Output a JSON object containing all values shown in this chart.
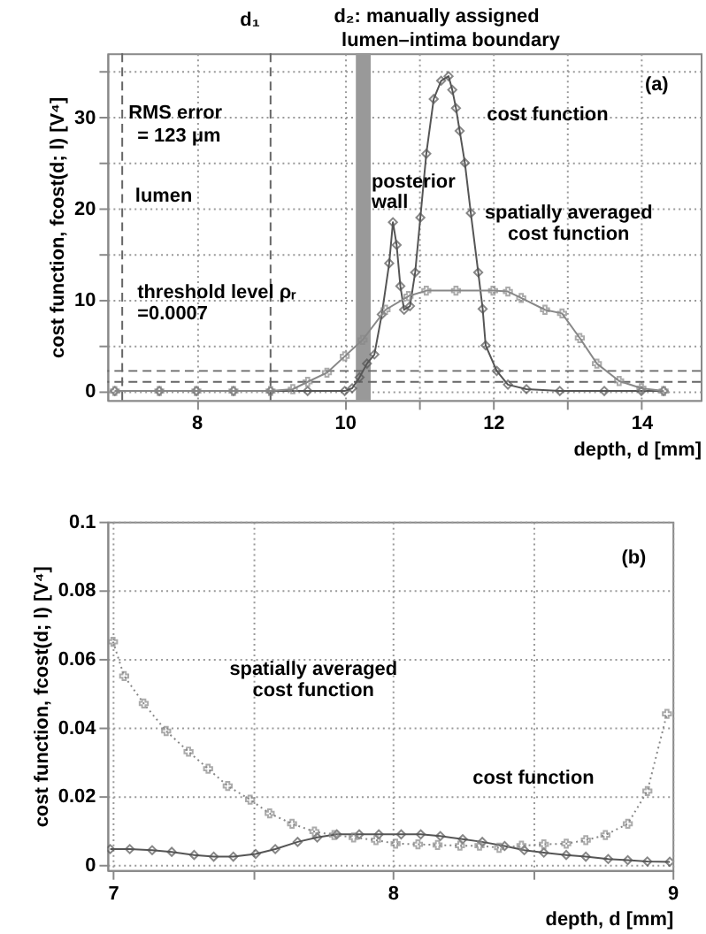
{
  "chart_data": [
    {
      "type": "line",
      "xlabel": "depth, d [mm]",
      "ylabel": "cost function, fcost(d; l) [V⁴]",
      "xlim": [
        6.8,
        14.8
      ],
      "ylim": [
        -1,
        37
      ],
      "xticks": [
        8,
        10,
        {
          "value": 11,
          "label": null
        },
        12,
        {
          "value": 13,
          "label": null
        },
        14
      ],
      "yticks": [
        0,
        {
          "value": 5,
          "label": null
        },
        10,
        {
          "value": 15,
          "label": null
        },
        20,
        {
          "value": 25,
          "label": null
        },
        30,
        {
          "value": 35,
          "label": null
        }
      ],
      "grid": true,
      "legend": false,
      "series": [
        {
          "color": "#555555",
          "marker": "diamond",
          "line_style": "solid",
          "x": [
            6.9,
            7.5,
            8,
            8.5,
            9,
            9.5,
            10,
            10.1,
            10.2,
            10.3,
            10.4,
            10.5,
            10.6,
            10.65,
            10.7,
            10.75,
            10.8,
            10.88,
            10.95,
            11.02,
            11.1,
            11.2,
            11.3,
            11.4,
            11.45,
            11.5,
            11.55,
            11.62,
            11.7,
            11.8,
            11.86,
            11.9,
            12.05,
            12.2,
            12.45,
            12.9,
            13.5,
            14,
            14.3
          ],
          "values": [
            0,
            0,
            0,
            0,
            0,
            0,
            0,
            0.3,
            1.5,
            3,
            4,
            8.4,
            14,
            18.5,
            16,
            11.5,
            8.9,
            9.3,
            13,
            19,
            26,
            32,
            34,
            34.5,
            33,
            31,
            28.5,
            25,
            19.5,
            13,
            9,
            5,
            2.2,
            0.7,
            0.2,
            0,
            0,
            0,
            0
          ]
        },
        {
          "color": "#888888",
          "marker": "cross",
          "line_style": "solid",
          "x": [
            6.9,
            7.5,
            8,
            8.5,
            9,
            9.3,
            9.5,
            9.76,
            10.0,
            10.24,
            10.55,
            10.86,
            11.1,
            11.5,
            12.0,
            12.2,
            12.38,
            12.7,
            12.93,
            13.17,
            13.4,
            13.7,
            14.0,
            14.3
          ],
          "values": [
            0,
            0,
            0,
            0,
            0,
            0.2,
            1,
            2,
            3.8,
            5.6,
            8.9,
            10.4,
            11,
            11,
            11,
            10.9,
            10.2,
            8.9,
            8.5,
            5.8,
            3,
            1.1,
            0.3,
            0
          ]
        }
      ],
      "bands": [
        {
          "axis": "x",
          "from": 10.15,
          "to": 10.35,
          "color": "#999999"
        }
      ],
      "ref_lines": [
        {
          "axis": "x",
          "value": 7,
          "line_style": "dashed",
          "color": "#666666"
        },
        {
          "axis": "x",
          "value": 9,
          "line_style": "dashed",
          "color": "#666666"
        },
        {
          "axis": "y",
          "value": 2.2,
          "line_style": "dashed",
          "color": "#666666"
        },
        {
          "axis": "y",
          "value": 1.0,
          "line_style": "dashed",
          "color": "#666666"
        }
      ],
      "annotations": [
        "d₁",
        "d₂: manually assigned",
        "lumen–intima boundary",
        "(a)",
        "RMS error",
        "= 123 μm",
        "lumen",
        "posterior",
        "wall",
        "cost function",
        "spatially averaged",
        "cost function",
        "threshold level ρᵣ",
        "=0.0007"
      ]
    },
    {
      "type": "line",
      "xlabel": "depth, d [mm]",
      "ylabel": "cost function, fcost(d; l) [V⁴]",
      "xlim": [
        6.98,
        9.0
      ],
      "ylim": [
        -0.0015,
        0.1
      ],
      "xticks": [
        7,
        {
          "value": 7.5,
          "label": null
        },
        8,
        {
          "value": 8.5,
          "label": null
        },
        9
      ],
      "yticks": [
        0,
        0.02,
        0.04,
        0.06,
        0.08,
        0.1
      ],
      "grid": true,
      "legend": false,
      "series": [
        {
          "color": "#555555",
          "marker": "diamond",
          "line_style": "solid",
          "x": [
            6.99,
            7.06,
            7.14,
            7.21,
            7.29,
            7.36,
            7.43,
            7.51,
            7.58,
            7.66,
            7.73,
            7.8,
            7.88,
            7.95,
            8.03,
            8.1,
            8.17,
            8.25,
            8.32,
            8.4,
            8.47,
            8.54,
            8.62,
            8.69,
            8.77,
            8.84,
            8.91,
            8.99
          ],
          "values": [
            0.0046,
            0.0046,
            0.0043,
            0.0038,
            0.0029,
            0.0024,
            0.0024,
            0.0032,
            0.0046,
            0.0067,
            0.008,
            0.0089,
            0.0089,
            0.0089,
            0.0089,
            0.0089,
            0.0084,
            0.0075,
            0.0067,
            0.0055,
            0.0043,
            0.0036,
            0.0029,
            0.0024,
            0.0017,
            0.0014,
            0.001,
            0.0009
          ]
        },
        {
          "color": "#888888",
          "marker": "cross",
          "line_style": "dotted",
          "x": [
            7.0,
            7.04,
            7.11,
            7.19,
            7.27,
            7.34,
            7.41,
            7.49,
            7.56,
            7.64,
            7.72,
            7.79,
            7.86,
            7.94,
            8.01,
            8.09,
            8.16,
            8.24,
            8.31,
            8.38,
            8.46,
            8.54,
            8.62,
            8.69,
            8.76,
            8.84,
            8.91,
            8.98
          ],
          "values": [
            0.065,
            0.055,
            0.047,
            0.039,
            0.033,
            0.028,
            0.023,
            0.019,
            0.015,
            0.012,
            0.0097,
            0.0087,
            0.008,
            0.0072,
            0.0062,
            0.006,
            0.0058,
            0.0056,
            0.0056,
            0.005,
            0.0056,
            0.006,
            0.0062,
            0.0072,
            0.0087,
            0.012,
            0.0215,
            0.044
          ]
        }
      ],
      "annotations": [
        "(b)",
        "spatially averaged",
        "cost function",
        "cost function"
      ]
    }
  ]
}
